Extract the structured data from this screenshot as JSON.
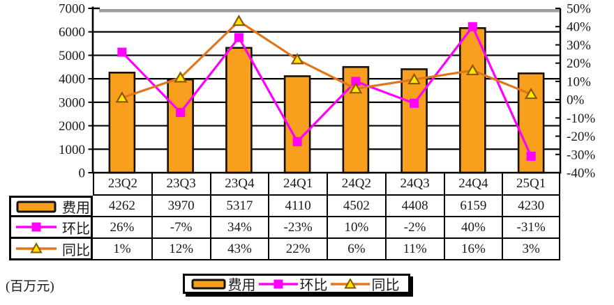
{
  "unit_label": "(百万元)",
  "colors": {
    "bar_fill": "#F8A01E",
    "bar_border": "#161006",
    "huanbi_line": "#FF00FF",
    "tongbi_line": "#E0751A",
    "triangle_fill": "#FFE600",
    "triangle_border": "#8A5800",
    "axis": "#000000",
    "grid": "#000000",
    "top_shadow": "#A0A0A0",
    "text": "#1a1a1a"
  },
  "chart_data": {
    "type": "bar",
    "combo_note": "orange bars on left axis + two percentage line series on right axis",
    "title": "",
    "categories": [
      "23Q2",
      "23Q3",
      "23Q4",
      "24Q1",
      "24Q2",
      "24Q3",
      "24Q4",
      "25Q1"
    ],
    "series": [
      {
        "name": "费用",
        "kind": "bar",
        "axis": "left",
        "values": [
          4262,
          3970,
          5317,
          4110,
          4502,
          4408,
          6159,
          4230
        ]
      },
      {
        "name": "环比",
        "kind": "line",
        "marker": "square",
        "axis": "right",
        "unit": "%",
        "values": [
          26,
          -7,
          34,
          -23,
          10,
          -2,
          40,
          -31
        ]
      },
      {
        "name": "同比",
        "kind": "line",
        "marker": "triangle",
        "axis": "right",
        "unit": "%",
        "values": [
          1,
          12,
          43,
          22,
          6,
          11,
          16,
          3
        ]
      }
    ],
    "left_axis": {
      "min": 0,
      "max": 7000,
      "step": 1000,
      "labels": [
        "7000",
        "6000",
        "5000",
        "4000",
        "3000",
        "2000",
        "1000",
        "0"
      ]
    },
    "right_axis": {
      "min": -40,
      "max": 50,
      "step": 10,
      "labels": [
        "50%",
        "40%",
        "30%",
        "20%",
        "10%",
        "0%",
        "-10%",
        "-20%",
        "-30%",
        "-40%"
      ]
    },
    "grid": true,
    "legend_position": "bottom",
    "data_table_shown": true
  },
  "table": {
    "columns": [
      "23Q2",
      "23Q3",
      "23Q4",
      "24Q1",
      "24Q2",
      "24Q3",
      "24Q4",
      "25Q1"
    ],
    "rows": [
      {
        "header": "费用",
        "key": "bar",
        "values": [
          "4262",
          "3970",
          "5317",
          "4110",
          "4502",
          "4408",
          "6159",
          "4230"
        ]
      },
      {
        "header": "环比",
        "key": "square",
        "values": [
          "26%",
          "-7%",
          "34%",
          "-23%",
          "10%",
          "-2%",
          "40%",
          "-31%"
        ]
      },
      {
        "header": "同比",
        "key": "triangle",
        "values": [
          "1%",
          "12%",
          "43%",
          "22%",
          "6%",
          "11%",
          "16%",
          "3%"
        ]
      }
    ]
  },
  "legend": {
    "items": [
      {
        "label": "费用",
        "key": "bar"
      },
      {
        "label": "环比",
        "key": "square"
      },
      {
        "label": "同比",
        "key": "triangle"
      }
    ]
  }
}
